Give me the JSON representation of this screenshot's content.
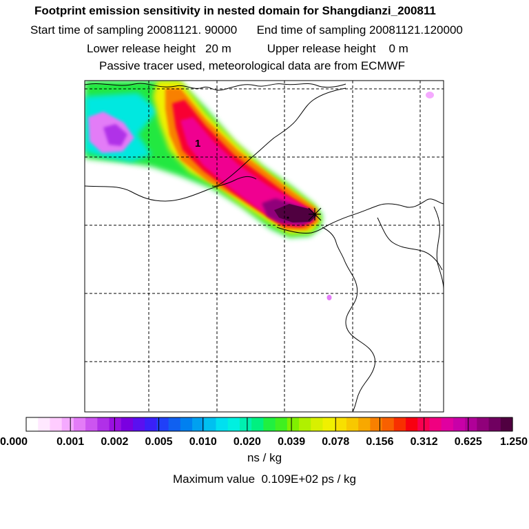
{
  "header": {
    "title": "Footprint emission sensitivity in nested domain for Shangdianzi_200811",
    "start_label": "Start time of sampling 20081121. 90000",
    "end_label": "End time of sampling 20081121.120000",
    "lower_label": "Lower release height   20 m",
    "upper_label": "Upper release height    0 m",
    "tracer_label": "Passive tracer used, meteorological data are from ECMWF"
  },
  "chart_data": {
    "type": "heatmap",
    "title": "Footprint emission sensitivity in nested domain for Shangdianzi_200811",
    "contour_label": "1",
    "legend": {
      "tick_labels": [
        "0.000",
        "0.001",
        "0.002",
        "0.005",
        "0.010",
        "0.020",
        "0.039",
        "0.078",
        "0.156",
        "0.312",
        "0.625",
        "1.250"
      ],
      "unit": "ns / kg",
      "colors": [
        "#ffffff",
        "#ffe8ff",
        "#ffccff",
        "#f5aaff",
        "#e37cf7",
        "#cc55f0",
        "#b030e8",
        "#9a10e0",
        "#7a00e0",
        "#5a10f0",
        "#3a20f8",
        "#2040f8",
        "#1060f0",
        "#0080f0",
        "#00a0f0",
        "#00c0f0",
        "#00e0f0",
        "#00f0e0",
        "#00f0b0",
        "#00f080",
        "#20f040",
        "#40f020",
        "#80f000",
        "#b0f000",
        "#d8f000",
        "#f0f000",
        "#f8e000",
        "#f8c800",
        "#f8a800",
        "#f88000",
        "#f86000",
        "#f83000",
        "#f80010",
        "#f80050",
        "#f00080",
        "#e000a0",
        "#c800a8",
        "#b00098",
        "#90007a",
        "#700060",
        "#500040"
      ]
    },
    "max_value_label": "Maximum value  0.109E+02 ps / kg"
  }
}
